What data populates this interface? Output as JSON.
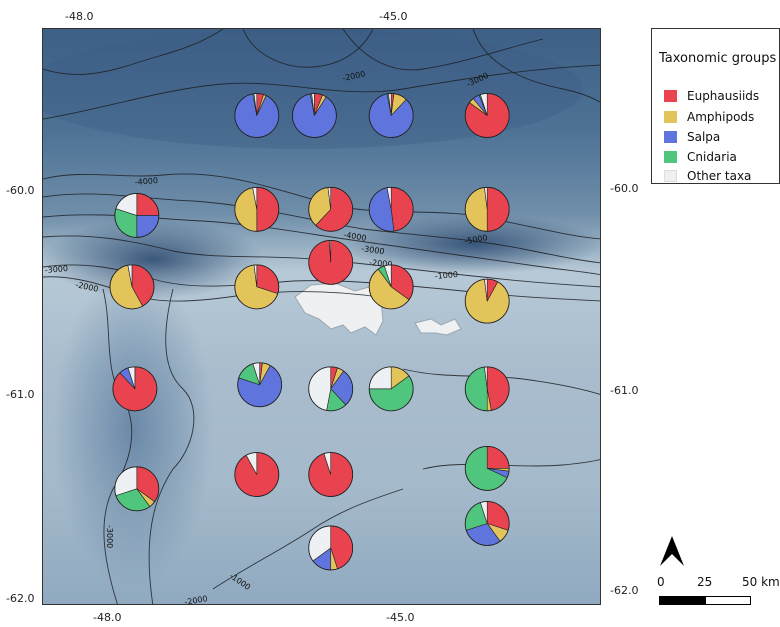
{
  "axes": {
    "top_lon_labels": [
      "-48.0",
      "-45.0"
    ],
    "bottom_lon_labels": [
      "-48.0",
      "-45.0"
    ],
    "left_lat_labels": [
      "-60.0",
      "-61.0",
      "-62.0"
    ],
    "right_lat_labels": [
      "-60.0",
      "-61.0",
      "-62.0"
    ]
  },
  "legend": {
    "title": "Taxonomic groups",
    "items": [
      {
        "label": "Euphausiids",
        "color": "#e8434f"
      },
      {
        "label": "Amphipods",
        "color": "#e3c45a"
      },
      {
        "label": "Salpa",
        "color": "#5f74dc"
      },
      {
        "label": "Cnidaria",
        "color": "#4fc57d"
      },
      {
        "label": "Other taxa",
        "color": "#eef1f4"
      }
    ]
  },
  "contour_labels": [
    "-2000",
    "-3000",
    "-4000",
    "-4000",
    "-3000",
    "-2000",
    "-5000",
    "-1000",
    "-3000",
    "-2000",
    "-3000",
    "-1000",
    "-2000"
  ],
  "scale_bar": {
    "labels": [
      "0",
      "25",
      "50 km"
    ]
  },
  "stations": [
    {
      "lon": -46.45,
      "lat": -59.62,
      "fractions": [
        0.05,
        0.02,
        0.9,
        0.01,
        0.02
      ]
    },
    {
      "lon": -45.85,
      "lat": -59.62,
      "fractions": [
        0.06,
        0.03,
        0.88,
        0.01,
        0.02
      ]
    },
    {
      "lon": -45.05,
      "lat": -59.62,
      "fractions": [
        0.02,
        0.1,
        0.85,
        0.01,
        0.02
      ]
    },
    {
      "lon": -44.05,
      "lat": -59.62,
      "fractions": [
        0.85,
        0.04,
        0.05,
        0.01,
        0.05
      ]
    },
    {
      "lon": -47.7,
      "lat": -60.11,
      "fractions": [
        0.25,
        0.0,
        0.25,
        0.3,
        0.2
      ]
    },
    {
      "lon": -46.45,
      "lat": -60.08,
      "fractions": [
        0.5,
        0.47,
        0.0,
        0.0,
        0.03
      ]
    },
    {
      "lon": -45.68,
      "lat": -60.08,
      "fractions": [
        0.62,
        0.36,
        0.0,
        0.0,
        0.02
      ]
    },
    {
      "lon": -45.05,
      "lat": -60.08,
      "fractions": [
        0.48,
        0.0,
        0.49,
        0.0,
        0.03
      ]
    },
    {
      "lon": -44.05,
      "lat": -60.08,
      "fractions": [
        0.5,
        0.48,
        0.0,
        0.0,
        0.02
      ]
    },
    {
      "lon": -45.68,
      "lat": -60.34,
      "fractions": [
        0.99,
        0.0,
        0.0,
        0.0,
        0.01
      ]
    },
    {
      "lon": -47.75,
      "lat": -60.46,
      "fractions": [
        0.42,
        0.55,
        0.0,
        0.0,
        0.03
      ]
    },
    {
      "lon": -46.45,
      "lat": -60.46,
      "fractions": [
        0.3,
        0.68,
        0.0,
        0.0,
        0.02
      ]
    },
    {
      "lon": -45.05,
      "lat": -60.46,
      "fractions": [
        0.35,
        0.55,
        0.0,
        0.05,
        0.05
      ]
    },
    {
      "lon": -44.05,
      "lat": -60.53,
      "fractions": [
        0.08,
        0.9,
        0.0,
        0.0,
        0.02
      ]
    },
    {
      "lon": -47.72,
      "lat": -60.96,
      "fractions": [
        0.88,
        0.0,
        0.07,
        0.0,
        0.05
      ]
    },
    {
      "lon": -46.42,
      "lat": -60.94,
      "fractions": [
        0.02,
        0.06,
        0.72,
        0.15,
        0.05
      ]
    },
    {
      "lon": -45.68,
      "lat": -60.96,
      "fractions": [
        0.05,
        0.05,
        0.28,
        0.15,
        0.47
      ]
    },
    {
      "lon": -45.05,
      "lat": -60.96,
      "fractions": [
        0.0,
        0.15,
        0.0,
        0.6,
        0.25
      ]
    },
    {
      "lon": -44.05,
      "lat": -60.96,
      "fractions": [
        0.47,
        0.03,
        0.0,
        0.48,
        0.02
      ]
    },
    {
      "lon": -47.7,
      "lat": -61.45,
      "fractions": [
        0.35,
        0.05,
        0.0,
        0.3,
        0.3
      ]
    },
    {
      "lon": -46.45,
      "lat": -61.38,
      "fractions": [
        0.92,
        0.0,
        0.0,
        0.0,
        0.08
      ]
    },
    {
      "lon": -45.68,
      "lat": -61.38,
      "fractions": [
        0.95,
        0.0,
        0.0,
        0.0,
        0.05
      ]
    },
    {
      "lon": -44.05,
      "lat": -61.35,
      "fractions": [
        0.25,
        0.02,
        0.05,
        0.68,
        0.0
      ]
    },
    {
      "lon": -44.05,
      "lat": -61.62,
      "fractions": [
        0.3,
        0.1,
        0.3,
        0.25,
        0.05
      ]
    },
    {
      "lon": -45.68,
      "lat": -61.74,
      "fractions": [
        0.45,
        0.05,
        0.15,
        0.0,
        0.35
      ]
    }
  ]
}
